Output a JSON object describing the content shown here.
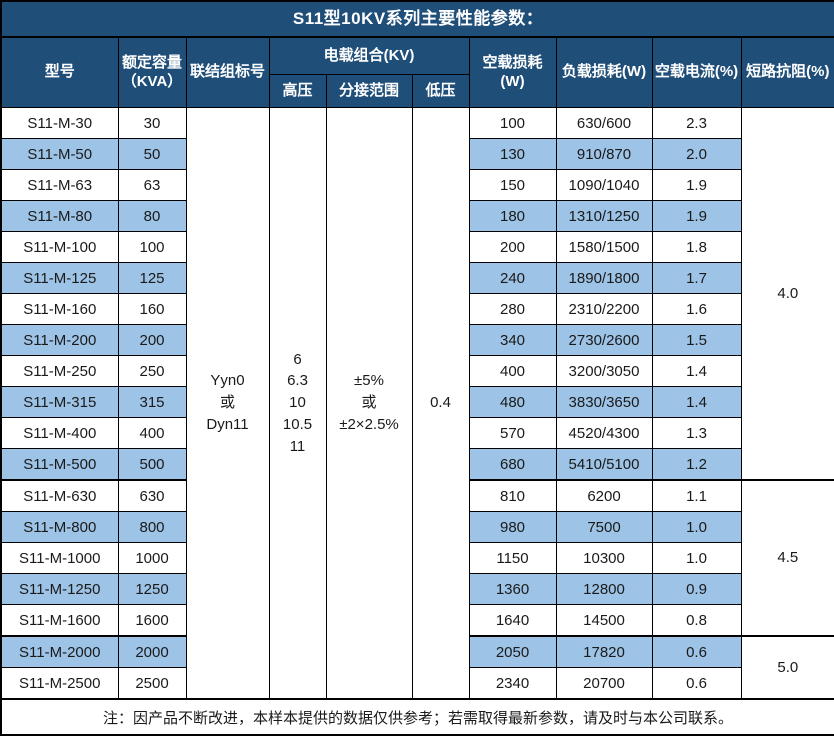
{
  "title": "S11型10KV系列主要性能参数：",
  "header": {
    "model": "型号",
    "capacity": "额定容量\n（KVA）",
    "connection": "联结组标号",
    "voltage_group": "电载组合(KV)",
    "hv": "高压",
    "tap_range": "分接范围",
    "lv": "低压",
    "no_load_loss": "空载损耗(W)",
    "load_loss": "负载损耗(W)",
    "no_load_current": "空载电流(%)",
    "impedance": "短路抗阻(%)"
  },
  "merged": {
    "connection": "Yyn0\n或\nDyn11",
    "hv": "6\n6.3\n10\n10.5\n11",
    "tap_range": "±5%\n或\n±2×2.5%",
    "lv": "0.4"
  },
  "groups": [
    {
      "impedance": "4.0",
      "rows": [
        {
          "model": "S11-M-30",
          "capacity": "30",
          "no_load_loss": "100",
          "load_loss": "630/600",
          "no_load_current": "2.3"
        },
        {
          "model": "S11-M-50",
          "capacity": "50",
          "no_load_loss": "130",
          "load_loss": "910/870",
          "no_load_current": "2.0"
        },
        {
          "model": "S11-M-63",
          "capacity": "63",
          "no_load_loss": "150",
          "load_loss": "1090/1040",
          "no_load_current": "1.9"
        },
        {
          "model": "S11-M-80",
          "capacity": "80",
          "no_load_loss": "180",
          "load_loss": "1310/1250",
          "no_load_current": "1.9"
        },
        {
          "model": "S11-M-100",
          "capacity": "100",
          "no_load_loss": "200",
          "load_loss": "1580/1500",
          "no_load_current": "1.8"
        },
        {
          "model": "S11-M-125",
          "capacity": "125",
          "no_load_loss": "240",
          "load_loss": "1890/1800",
          "no_load_current": "1.7"
        },
        {
          "model": "S11-M-160",
          "capacity": "160",
          "no_load_loss": "280",
          "load_loss": "2310/2200",
          "no_load_current": "1.6"
        },
        {
          "model": "S11-M-200",
          "capacity": "200",
          "no_load_loss": "340",
          "load_loss": "2730/2600",
          "no_load_current": "1.5"
        },
        {
          "model": "S11-M-250",
          "capacity": "250",
          "no_load_loss": "400",
          "load_loss": "3200/3050",
          "no_load_current": "1.4"
        },
        {
          "model": "S11-M-315",
          "capacity": "315",
          "no_load_loss": "480",
          "load_loss": "3830/3650",
          "no_load_current": "1.4"
        },
        {
          "model": "S11-M-400",
          "capacity": "400",
          "no_load_loss": "570",
          "load_loss": "4520/4300",
          "no_load_current": "1.3"
        },
        {
          "model": "S11-M-500",
          "capacity": "500",
          "no_load_loss": "680",
          "load_loss": "5410/5100",
          "no_load_current": "1.2"
        }
      ]
    },
    {
      "impedance": "4.5",
      "rows": [
        {
          "model": "S11-M-630",
          "capacity": "630",
          "no_load_loss": "810",
          "load_loss": "6200",
          "no_load_current": "1.1"
        },
        {
          "model": "S11-M-800",
          "capacity": "800",
          "no_load_loss": "980",
          "load_loss": "7500",
          "no_load_current": "1.0"
        },
        {
          "model": "S11-M-1000",
          "capacity": "1000",
          "no_load_loss": "1150",
          "load_loss": "10300",
          "no_load_current": "1.0"
        },
        {
          "model": "S11-M-1250",
          "capacity": "1250",
          "no_load_loss": "1360",
          "load_loss": "12800",
          "no_load_current": "0.9"
        },
        {
          "model": "S11-M-1600",
          "capacity": "1600",
          "no_load_loss": "1640",
          "load_loss": "14500",
          "no_load_current": "0.8"
        }
      ]
    },
    {
      "impedance": "5.0",
      "rows": [
        {
          "model": "S11-M-2000",
          "capacity": "2000",
          "no_load_loss": "2050",
          "load_loss": "17820",
          "no_load_current": "0.6"
        },
        {
          "model": "S11-M-2500",
          "capacity": "2500",
          "no_load_loss": "2340",
          "load_loss": "20700",
          "no_load_current": "0.6"
        }
      ]
    }
  ],
  "note": "注：因产品不断改进，本样本提供的数据仅供参考；若需取得最新参数，请及时与本公司联系。",
  "colors": {
    "header_bg": "#1F4E79",
    "stripe_bg": "#9DC3E6",
    "border": "#000000",
    "header_text": "#FFFFFF",
    "body_text": "#1A1A1A"
  }
}
